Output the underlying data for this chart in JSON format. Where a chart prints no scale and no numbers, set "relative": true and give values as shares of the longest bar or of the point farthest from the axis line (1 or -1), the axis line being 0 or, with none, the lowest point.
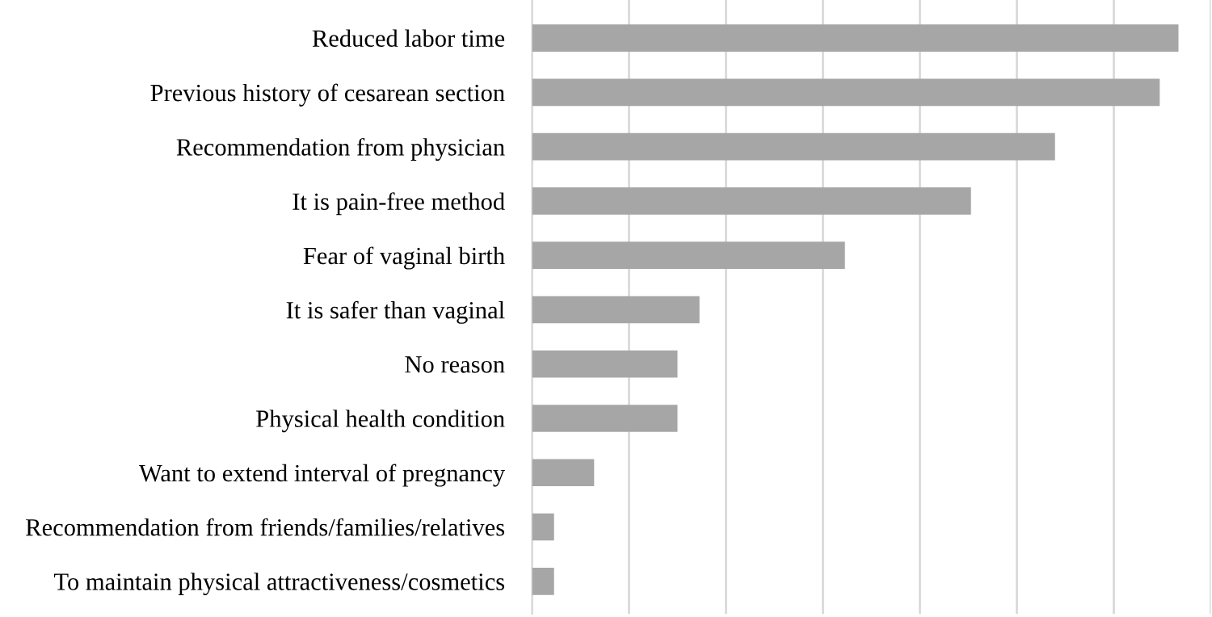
{
  "chart_data": {
    "type": "bar",
    "orientation": "horizontal",
    "relative": true,
    "grid": "x",
    "color": "#a6a6a6",
    "categories": [
      "Reduced labor time",
      "Previous history of cesarean section",
      "Recommendation from physician",
      "It is pain-free method",
      "Fear of vaginal birth",
      "It is safer than vaginal",
      "No reason",
      "Physical health condition",
      "Want to extend interval of pregnancy",
      "Recommendation from friends/families/relatives",
      "To maintain physical attractiveness/cosmetics"
    ],
    "values": [
      1,
      0.971,
      0.809,
      0.679,
      0.484,
      0.259,
      0.225,
      0.225,
      0.096,
      0.034,
      0.034
    ]
  }
}
